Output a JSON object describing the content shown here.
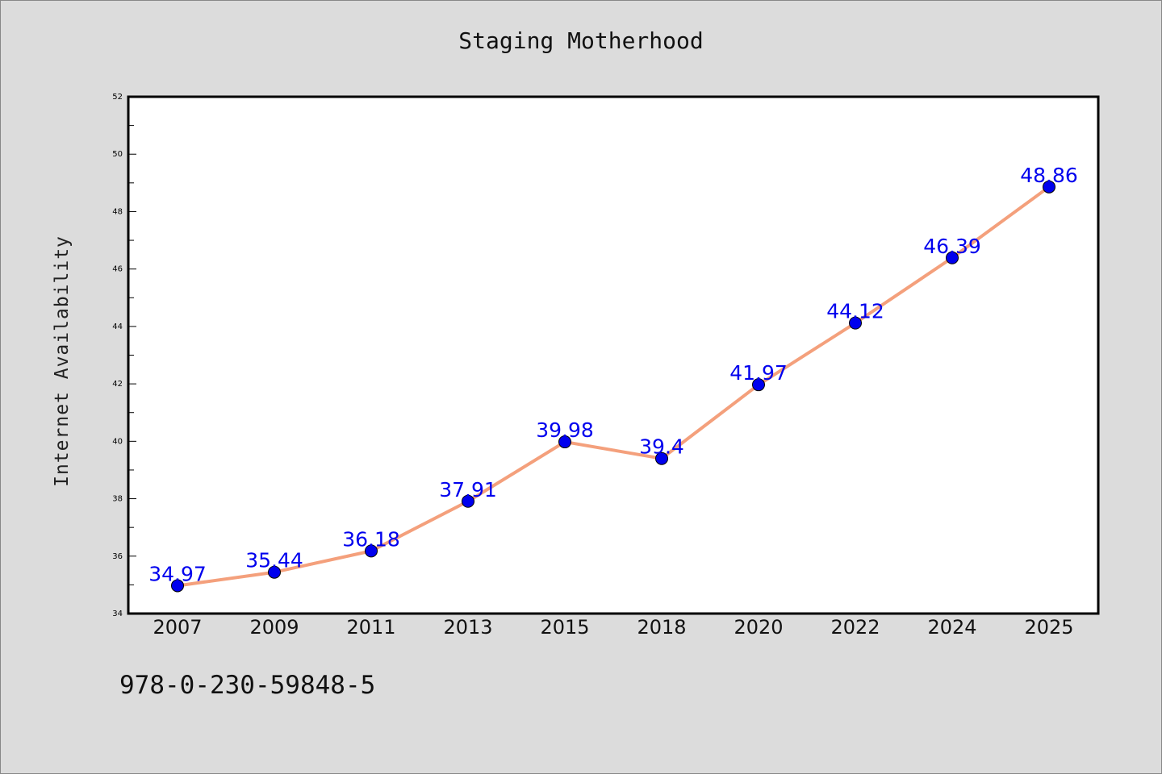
{
  "chart_data": {
    "type": "line",
    "title": "Staging Motherhood",
    "xlabel": "",
    "ylabel": "Internet Availability",
    "categories": [
      "2007",
      "2009",
      "2011",
      "2013",
      "2015",
      "2018",
      "2020",
      "2022",
      "2024",
      "2025"
    ],
    "series": [
      {
        "values": [
          34.97,
          35.44,
          36.18,
          37.91,
          39.98,
          39.4,
          41.97,
          44.12,
          46.39,
          48.86
        ],
        "labels": [
          "34.97",
          "35.44",
          "36.18",
          "37.91",
          "39.98",
          "39.4",
          "41.97",
          "44.12",
          "46.39",
          "48.86"
        ],
        "line_color": "#f4a07c",
        "marker_color": "#0000ee",
        "label_color": "#0000ee"
      }
    ],
    "ylim": [
      34,
      52
    ],
    "yticks": [
      "34",
      "36",
      "38",
      "40",
      "42",
      "44",
      "46",
      "48",
      "50",
      "52"
    ],
    "grid": false,
    "legend": "none"
  },
  "footer": {
    "isbn": "978-0-230-59848-5"
  },
  "colors": {
    "background": "#dcdcdc",
    "plot_background": "#ffffff",
    "axis": "#000000"
  }
}
